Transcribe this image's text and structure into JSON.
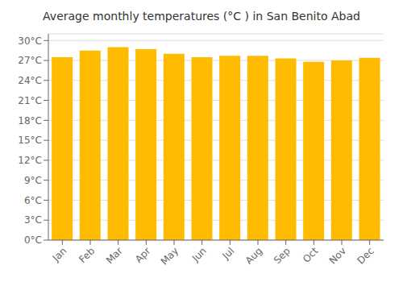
{
  "chart_data": {
    "type": "bar",
    "title": "Average monthly temperatures (°C ) in San Benito Abad",
    "categories": [
      "Jan",
      "Feb",
      "Mar",
      "Apr",
      "May",
      "Jun",
      "Jul",
      "Aug",
      "Sep",
      "Oct",
      "Nov",
      "Dec"
    ],
    "values": [
      27.5,
      28.5,
      29.0,
      28.7,
      28.0,
      27.5,
      27.7,
      27.7,
      27.3,
      26.8,
      27.0,
      27.4
    ],
    "color": "#FFBB00",
    "ylim": [
      0,
      31
    ],
    "yticks": [
      {
        "value": 0,
        "label": "0°C"
      },
      {
        "value": 3,
        "label": "3°C"
      },
      {
        "value": 6,
        "label": "6°C"
      },
      {
        "value": 9,
        "label": "9°C"
      },
      {
        "value": 12,
        "label": "12°C"
      },
      {
        "value": 15,
        "label": "15°C"
      },
      {
        "value": 18,
        "label": "18°C"
      },
      {
        "value": 21,
        "label": "21°C"
      },
      {
        "value": 24,
        "label": "24°C"
      },
      {
        "value": 27,
        "label": "27°C"
      },
      {
        "value": 30,
        "label": "30°C"
      }
    ],
    "grid": true
  }
}
